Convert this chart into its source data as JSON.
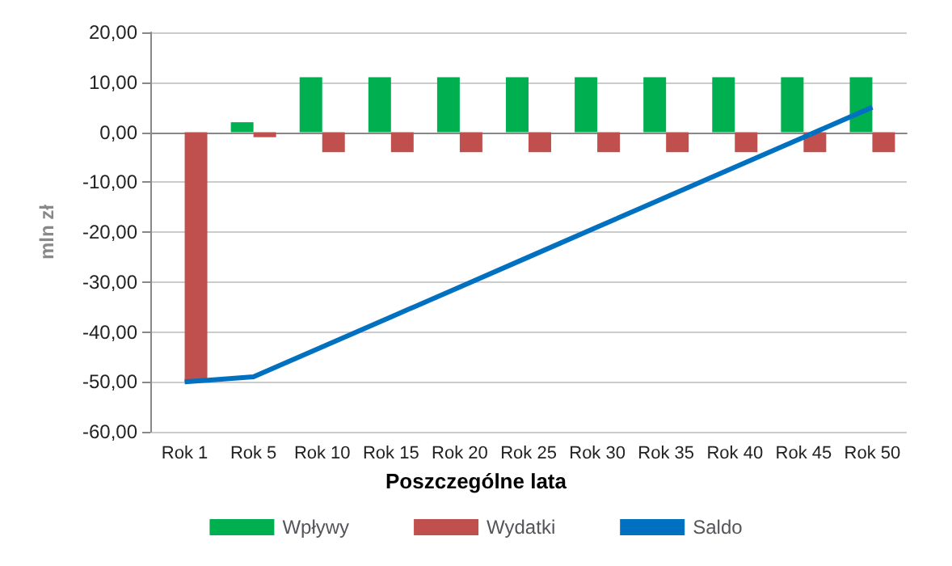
{
  "chart_data": {
    "type": "bar",
    "xlabel": "Poszczególne lata",
    "ylabel": "mln zł",
    "categories": [
      "Rok 1",
      "Rok 5",
      "Rok 10",
      "Rok 15",
      "Rok 20",
      "Rok 25",
      "Rok 30",
      "Rok 35",
      "Rok 40",
      "Rok 45",
      "Rok 50"
    ],
    "series": [
      {
        "name": "Wpływy",
        "color": "#00b050",
        "values": [
          0,
          2,
          11,
          11,
          11,
          11,
          11,
          11,
          11,
          11,
          11
        ]
      },
      {
        "name": "Wydatki",
        "color": "#c0504d",
        "values": [
          -50,
          -1,
          -4,
          -4,
          -4,
          -4,
          -4,
          -4,
          -4,
          -4,
          -4
        ]
      },
      {
        "name": "Saldo",
        "type": "line",
        "color": "#0070c0",
        "values": [
          -50,
          -49,
          -43,
          -37,
          -31,
          -25,
          -19,
          -13,
          -7,
          -1,
          5
        ]
      }
    ],
    "ylim": [
      -60,
      20
    ],
    "yticks": [
      {
        "value": -60,
        "label": "-60,00"
      },
      {
        "value": -50,
        "label": "-50,00"
      },
      {
        "value": -40,
        "label": "-40,00"
      },
      {
        "value": -30,
        "label": "-30,00"
      },
      {
        "value": -20,
        "label": "-20,00"
      },
      {
        "value": -10,
        "label": "-10,00"
      },
      {
        "value": 0,
        "label": "0,00"
      },
      {
        "value": 10,
        "label": "10,00"
      },
      {
        "value": 20,
        "label": "20,00"
      }
    ],
    "grid": "y",
    "legend": "bottom",
    "marker": "none",
    "line_style": "solid"
  }
}
